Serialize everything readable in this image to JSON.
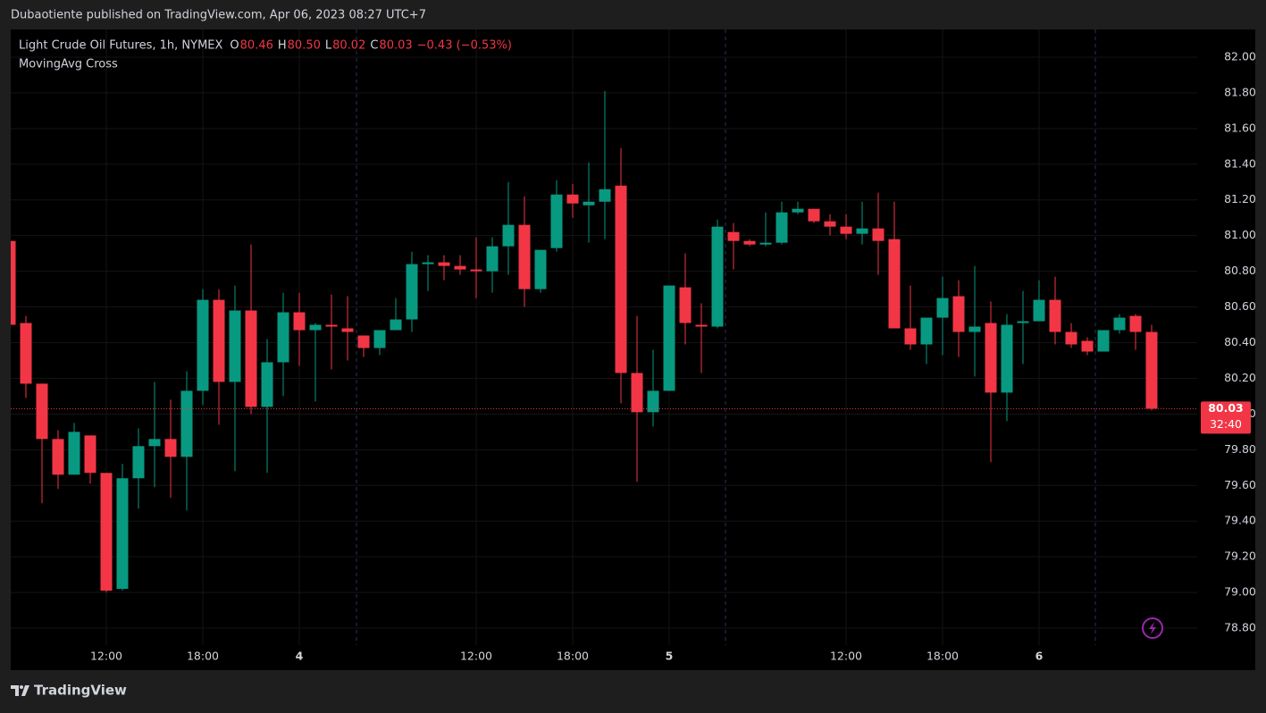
{
  "published_by": "Dubaotiente published on TradingView.com, Apr 06, 2023 08:27 UTC+7",
  "footer": "TradingView",
  "chart_data": {
    "type": "candlestick",
    "title": "Light Crude Oil Futures, 1h, NYMEX",
    "indicator": "MovingAvg Cross",
    "header_values": [
      {
        "label": "O",
        "value": "80.46"
      },
      {
        "label": "H",
        "value": "80.50"
      },
      {
        "label": "L",
        "value": "80.02"
      },
      {
        "label": "C",
        "value": "80.03"
      }
    ],
    "change": "−0.43 (−0.53%)",
    "up_color": "#089981",
    "down_color": "#f23645",
    "grid": true,
    "categories": [
      null,
      null,
      null,
      null,
      null,
      null,
      "12:00",
      null,
      null,
      null,
      null,
      null,
      "18:00",
      null,
      null,
      null,
      null,
      null,
      "4",
      null,
      null,
      null,
      null,
      null,
      null,
      null,
      null,
      null,
      null,
      "12:00",
      null,
      null,
      null,
      null,
      null,
      "18:00",
      null,
      null,
      null,
      null,
      null,
      "5",
      null,
      null,
      null,
      null,
      null,
      null,
      null,
      null,
      null,
      null,
      "12:00",
      null,
      null,
      null,
      null,
      null,
      "18:00",
      null,
      null,
      null,
      null,
      null,
      "6",
      null,
      null,
      null,
      null,
      null,
      null,
      null
    ],
    "open": [
      80.97,
      80.51,
      80.17,
      79.86,
      79.66,
      79.88,
      79.67,
      79.02,
      79.64,
      79.82,
      79.86,
      79.76,
      80.13,
      80.64,
      80.18,
      80.58,
      80.04,
      80.29,
      80.57,
      80.47,
      80.5,
      80.48,
      80.44,
      80.37,
      80.47,
      80.53,
      80.84,
      80.85,
      80.83,
      80.81,
      80.8,
      80.94,
      81.06,
      80.7,
      80.93,
      81.23,
      81.17,
      81.19,
      81.28,
      80.23,
      80.01,
      80.13,
      80.71,
      80.5,
      80.49,
      81.02,
      80.97,
      80.95,
      80.96,
      81.13,
      81.15,
      81.08,
      81.05,
      81.01,
      81.04,
      80.98,
      80.48,
      80.39,
      80.54,
      80.66,
      80.46,
      80.51,
      80.12,
      80.51,
      80.52,
      80.64,
      80.46,
      80.41,
      80.35,
      80.47,
      80.55,
      80.46
    ],
    "high": [
      80.97,
      80.55,
      80.17,
      79.91,
      79.95,
      79.88,
      79.67,
      79.72,
      79.92,
      80.18,
      80.08,
      80.24,
      80.7,
      80.7,
      80.72,
      80.95,
      80.42,
      80.68,
      80.68,
      80.51,
      80.67,
      80.66,
      80.44,
      80.47,
      80.65,
      80.91,
      80.89,
      80.89,
      80.89,
      80.99,
      80.99,
      81.3,
      81.22,
      80.92,
      81.31,
      81.29,
      81.41,
      81.81,
      81.49,
      80.55,
      80.36,
      80.72,
      80.9,
      80.62,
      81.09,
      81.07,
      80.98,
      81.13,
      81.19,
      81.19,
      81.15,
      81.12,
      81.12,
      81.19,
      81.24,
      81.19,
      80.72,
      80.54,
      80.77,
      80.75,
      80.83,
      80.63,
      80.56,
      80.69,
      80.75,
      80.77,
      80.51,
      80.43,
      80.47,
      80.56,
      80.56,
      80.5
    ],
    "low": [
      80.5,
      80.09,
      79.5,
      79.58,
      79.66,
      79.61,
      79.0,
      79.01,
      79.47,
      79.59,
      79.53,
      79.46,
      80.05,
      79.94,
      79.68,
      80.0,
      79.67,
      80.1,
      80.27,
      80.07,
      80.25,
      80.3,
      80.32,
      80.33,
      80.47,
      80.46,
      80.69,
      80.75,
      80.78,
      80.65,
      80.68,
      80.78,
      80.6,
      80.68,
      80.91,
      81.1,
      80.96,
      80.98,
      80.06,
      79.62,
      79.93,
      80.13,
      80.39,
      80.23,
      80.48,
      80.81,
      80.94,
      80.94,
      80.95,
      81.12,
      81.07,
      81.0,
      80.98,
      80.95,
      80.78,
      80.48,
      80.36,
      80.28,
      80.33,
      80.32,
      80.21,
      79.73,
      79.96,
      80.28,
      80.52,
      80.39,
      80.37,
      80.33,
      80.35,
      80.45,
      80.36,
      80.02
    ],
    "close": [
      80.5,
      80.17,
      79.86,
      79.66,
      79.9,
      79.67,
      79.01,
      79.64,
      79.82,
      79.86,
      79.76,
      80.13,
      80.64,
      80.18,
      80.58,
      80.04,
      80.29,
      80.57,
      80.47,
      80.5,
      80.49,
      80.46,
      80.37,
      80.47,
      80.53,
      80.84,
      80.85,
      80.83,
      80.81,
      80.8,
      80.94,
      81.06,
      80.7,
      80.92,
      81.23,
      81.18,
      81.19,
      81.26,
      80.23,
      80.01,
      80.13,
      80.72,
      80.51,
      80.49,
      81.05,
      80.97,
      80.95,
      80.96,
      81.13,
      81.15,
      81.08,
      81.05,
      81.01,
      81.04,
      80.97,
      80.48,
      80.39,
      80.54,
      80.65,
      80.46,
      80.49,
      80.12,
      80.5,
      80.52,
      80.64,
      80.46,
      80.39,
      80.35,
      80.47,
      80.54,
      80.46,
      80.03
    ],
    "ylim": [
      78.705,
      82.155
    ],
    "yticks": [
      {
        "value": 78.8,
        "label": "78.80"
      },
      {
        "value": 79,
        "label": "79.00"
      },
      {
        "value": 79.2,
        "label": "79.20"
      },
      {
        "value": 79.4,
        "label": "79.40"
      },
      {
        "value": 79.6,
        "label": "79.60"
      },
      {
        "value": 79.8,
        "label": "79.80"
      },
      {
        "value": 80,
        "label": "80.00"
      },
      {
        "value": 80.2,
        "label": "80.20"
      },
      {
        "value": 80.4,
        "label": "80.40"
      },
      {
        "value": 80.6,
        "label": "80.60"
      },
      {
        "value": 80.8,
        "label": "80.80"
      },
      {
        "value": 81,
        "label": "81.00"
      },
      {
        "value": 81.2,
        "label": "81.20"
      },
      {
        "value": 81.4,
        "label": "81.40"
      },
      {
        "value": 81.6,
        "label": "81.60"
      },
      {
        "value": 81.8,
        "label": "81.80"
      },
      {
        "value": 82,
        "label": "82.00"
      }
    ],
    "last_price": 80.03,
    "countdown": "32:40"
  }
}
